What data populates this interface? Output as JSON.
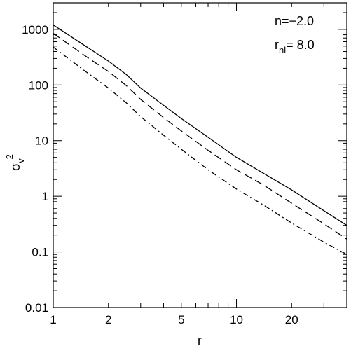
{
  "chart_data": {
    "type": "line",
    "xscale": "log",
    "yscale": "log",
    "xlim": [
      1,
      40
    ],
    "ylim": [
      0.01,
      3000
    ],
    "xlabel": "r",
    "ylabel": {
      "base": "σ",
      "sub": "v",
      "sup": "2"
    },
    "xticks": [
      1,
      2,
      5,
      10,
      20
    ],
    "xtick_labels": [
      "1",
      "2",
      "5",
      "10",
      "20"
    ],
    "yticks": [
      0.01,
      0.1,
      1,
      10,
      100,
      1000
    ],
    "ytick_labels": [
      "0.01",
      "0.1",
      "1",
      "10",
      "100",
      "1000"
    ],
    "annotations": [
      {
        "text": "n=−2.0"
      },
      {
        "base": "r",
        "sub": "nl",
        "text": "=  8.0"
      }
    ],
    "series": [
      {
        "style": "solid",
        "x": [
          1,
          1.5,
          2,
          2.5,
          3,
          4,
          5,
          7,
          10,
          14,
          20,
          30,
          40
        ],
        "y": [
          1200,
          500,
          270,
          155,
          88,
          43,
          25,
          11.5,
          5.0,
          2.6,
          1.3,
          0.55,
          0.3
        ]
      },
      {
        "style": "dashed",
        "x": [
          1,
          1.5,
          2,
          2.5,
          3,
          4,
          5,
          7,
          10,
          14,
          20,
          30,
          40
        ],
        "y": [
          850,
          330,
          175,
          98,
          55,
          26,
          15,
          6.7,
          3.0,
          1.6,
          0.75,
          0.32,
          0.17
        ]
      },
      {
        "style": "dashdot",
        "x": [
          1,
          1.5,
          2,
          2.5,
          3,
          4,
          5,
          7,
          10,
          14,
          20,
          30,
          40
        ],
        "y": [
          480,
          175,
          88,
          48,
          27,
          12.5,
          7.0,
          3.0,
          1.35,
          0.7,
          0.33,
          0.15,
          0.09
        ]
      }
    ]
  }
}
